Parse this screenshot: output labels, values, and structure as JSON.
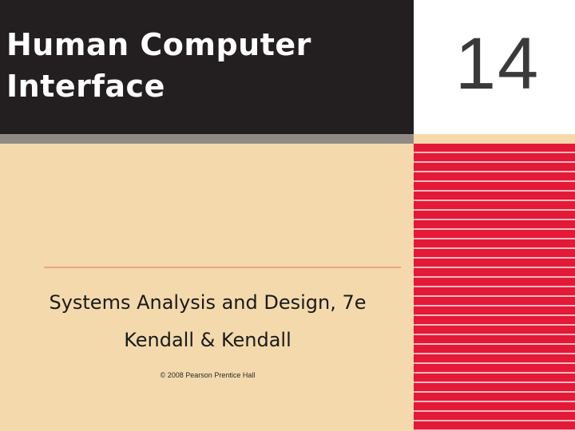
{
  "slide": {
    "title_line1": "Human Computer",
    "title_line2": "Interface",
    "chapter_number": "14",
    "subtitle": "Systems Analysis and Design, 7e",
    "authors": "Kendall & Kendall",
    "copyright": "© 2008 Pearson Prentice Hall"
  },
  "colors": {
    "header_bg": "#231f20",
    "cream_bg": "#f3d9ac",
    "stripe_red": "#e31937",
    "divider": "#e8a48a"
  }
}
